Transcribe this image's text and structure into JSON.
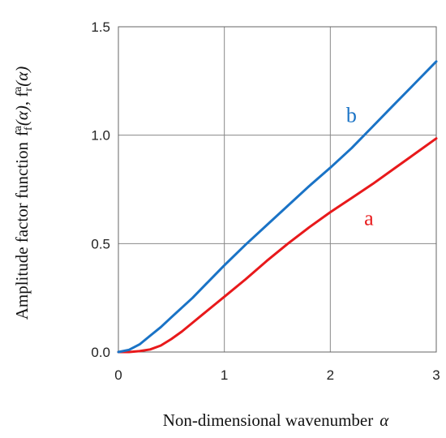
{
  "chart_data": {
    "type": "line",
    "title": "",
    "xlabel_text": "Non-dimensional wavenumber",
    "xlabel_symbol": "α",
    "ylabel_text": "Amplitude factor function",
    "ylabel_symbols": "f",
    "ylabel_symbol_sub1": "f",
    "ylabel_symbol_sub2": "r",
    "ylabel_symbol_sup": "a",
    "ylabel_symbol_arg": "(α)",
    "xlim": [
      0,
      3
    ],
    "ylim": [
      0,
      1.5
    ],
    "x_ticks": [
      0,
      1,
      2,
      3
    ],
    "x_tick_labels": [
      "0",
      "1",
      "2",
      "3"
    ],
    "y_ticks": [
      0,
      0.5,
      1.0,
      1.5
    ],
    "y_tick_labels": [
      "0.0",
      "0.5",
      "1.0",
      "1.5"
    ],
    "grid": true,
    "series": [
      {
        "name": "a",
        "color": "#e8191b",
        "x": [
          0,
          0.1,
          0.2,
          0.3,
          0.4,
          0.5,
          0.6,
          0.7,
          0.8,
          0.9,
          1.0,
          1.2,
          1.4,
          1.6,
          1.8,
          2.0,
          2.2,
          2.4,
          2.6,
          2.8,
          3.0
        ],
        "y": [
          0,
          0.0,
          0.004,
          0.012,
          0.03,
          0.06,
          0.095,
          0.135,
          0.175,
          0.215,
          0.255,
          0.335,
          0.42,
          0.5,
          0.575,
          0.645,
          0.71,
          0.775,
          0.845,
          0.915,
          0.985
        ]
      },
      {
        "name": "b",
        "color": "#1a73c6",
        "x": [
          0,
          0.1,
          0.2,
          0.3,
          0.4,
          0.5,
          0.6,
          0.7,
          0.8,
          0.9,
          1.0,
          1.2,
          1.4,
          1.6,
          1.8,
          2.0,
          2.2,
          2.4,
          2.6,
          2.8,
          3.0
        ],
        "y": [
          0,
          0.01,
          0.035,
          0.075,
          0.115,
          0.16,
          0.205,
          0.25,
          0.3,
          0.35,
          0.4,
          0.495,
          0.585,
          0.675,
          0.765,
          0.85,
          0.94,
          1.04,
          1.14,
          1.24,
          1.34
        ]
      }
    ]
  }
}
